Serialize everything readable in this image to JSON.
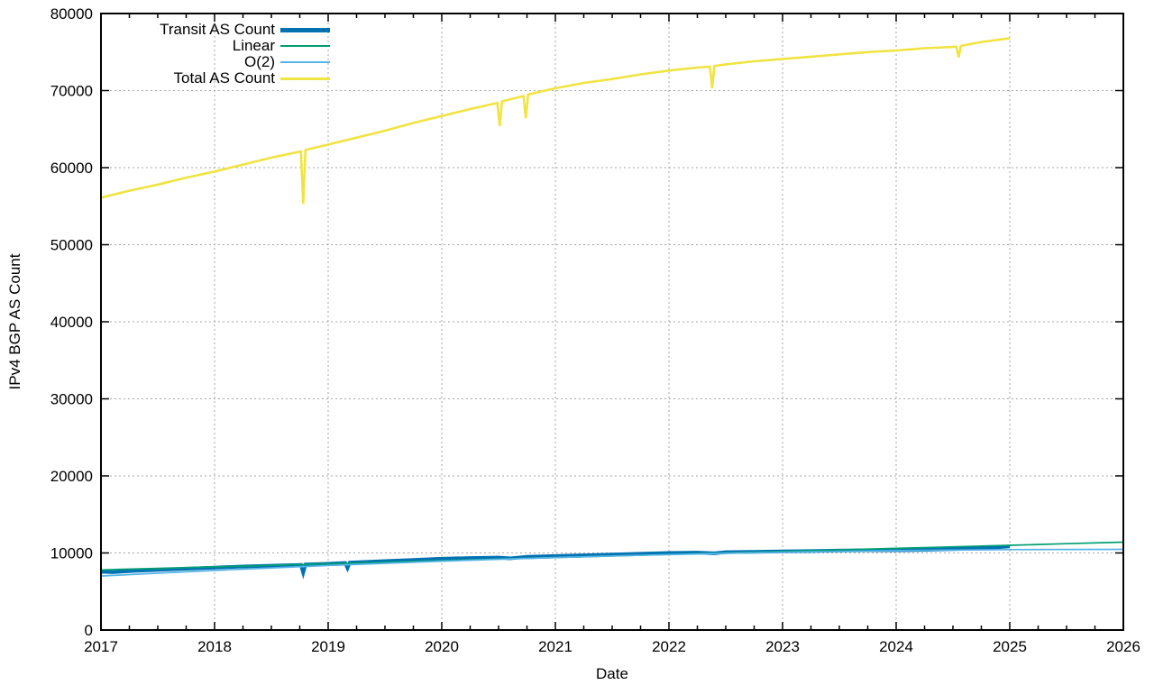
{
  "figure": {
    "background_color": "#ffffff",
    "axis_color": "#000000",
    "grid_color": "#a6a6a6"
  },
  "chart_data": {
    "type": "line",
    "title": "",
    "xlabel": "Date",
    "ylabel": "IPv4 BGP AS Count",
    "xlim": [
      2017,
      2026
    ],
    "ylim": [
      0,
      80000
    ],
    "x_major_ticks": [
      2017,
      2018,
      2019,
      2020,
      2021,
      2022,
      2023,
      2024,
      2025,
      2026
    ],
    "x_tick_labels": [
      "2017",
      "2018",
      "2019",
      "2020",
      "2021",
      "2022",
      "2023",
      "2024",
      "2025",
      "2026"
    ],
    "x_minor_step": 0.25,
    "y_major_ticks": [
      0,
      10000,
      20000,
      30000,
      40000,
      50000,
      60000,
      70000,
      80000
    ],
    "y_tick_labels": [
      "0",
      "10000",
      "20000",
      "30000",
      "40000",
      "50000",
      "60000",
      "70000",
      "80000"
    ],
    "grid": "dotted-on-major-ticks",
    "legend_position": "top-left-inside",
    "series": [
      {
        "name": "Transit AS Count",
        "color": "#0072B2",
        "width": 4,
        "legend_stroke": 5,
        "points": [
          [
            2017.0,
            7550
          ],
          [
            2017.1,
            7500
          ],
          [
            2017.25,
            7650
          ],
          [
            2017.5,
            7800
          ],
          [
            2017.75,
            7950
          ],
          [
            2018.0,
            8100
          ],
          [
            2018.25,
            8250
          ],
          [
            2018.5,
            8350
          ],
          [
            2018.76,
            8450
          ],
          [
            2018.78,
            7450
          ],
          [
            2018.8,
            8500
          ],
          [
            2019.0,
            8600
          ],
          [
            2019.15,
            8700
          ],
          [
            2019.17,
            8050
          ],
          [
            2019.19,
            8750
          ],
          [
            2019.5,
            8950
          ],
          [
            2019.75,
            9100
          ],
          [
            2020.0,
            9250
          ],
          [
            2020.25,
            9350
          ],
          [
            2020.5,
            9400
          ],
          [
            2020.6,
            9300
          ],
          [
            2020.75,
            9500
          ],
          [
            2021.0,
            9600
          ],
          [
            2021.25,
            9700
          ],
          [
            2021.5,
            9800
          ],
          [
            2021.75,
            9900
          ],
          [
            2022.0,
            10000
          ],
          [
            2022.25,
            10050
          ],
          [
            2022.4,
            9950
          ],
          [
            2022.5,
            10100
          ],
          [
            2022.75,
            10150
          ],
          [
            2023.0,
            10200
          ],
          [
            2023.25,
            10250
          ],
          [
            2023.5,
            10300
          ],
          [
            2023.75,
            10350
          ],
          [
            2024.0,
            10350
          ],
          [
            2024.25,
            10400
          ],
          [
            2024.5,
            10500
          ],
          [
            2024.75,
            10600
          ],
          [
            2024.9,
            10750
          ],
          [
            2025.0,
            10850
          ]
        ]
      },
      {
        "name": "Linear",
        "color": "#009E73",
        "width": 1.7,
        "legend_stroke": 2,
        "points": [
          [
            2017,
            7800
          ],
          [
            2017.5,
            8000
          ],
          [
            2018,
            8200
          ],
          [
            2018.5,
            8400
          ],
          [
            2019,
            8600
          ],
          [
            2019.5,
            8800
          ],
          [
            2020,
            9000
          ],
          [
            2020.5,
            9200
          ],
          [
            2021,
            9400
          ],
          [
            2021.5,
            9600
          ],
          [
            2022,
            9800
          ],
          [
            2022.5,
            10000
          ],
          [
            2023,
            10200
          ],
          [
            2023.5,
            10400
          ],
          [
            2024,
            10600
          ],
          [
            2024.5,
            10800
          ],
          [
            2025,
            11000
          ],
          [
            2025.5,
            11200
          ],
          [
            2026,
            11400
          ]
        ]
      },
      {
        "name": "O(2)",
        "color": "#56B4E9",
        "width": 1.7,
        "legend_stroke": 2,
        "points": [
          [
            2017,
            7000
          ],
          [
            2017.5,
            7380
          ],
          [
            2018,
            7730
          ],
          [
            2018.5,
            8060
          ],
          [
            2019,
            8370
          ],
          [
            2019.5,
            8660
          ],
          [
            2020,
            8930
          ],
          [
            2020.5,
            9180
          ],
          [
            2021,
            9400
          ],
          [
            2021.5,
            9610
          ],
          [
            2022,
            9790
          ],
          [
            2022.5,
            9950
          ],
          [
            2023,
            10090
          ],
          [
            2023.5,
            10200
          ],
          [
            2024,
            10300
          ],
          [
            2024.5,
            10370
          ],
          [
            2025,
            10430
          ],
          [
            2025.5,
            10460
          ],
          [
            2026,
            10470
          ]
        ]
      },
      {
        "name": "Total AS Count",
        "color": "#F0E442",
        "width": 2.6,
        "legend_stroke": 3,
        "points": [
          [
            2017.0,
            56100
          ],
          [
            2017.25,
            57000
          ],
          [
            2017.5,
            57800
          ],
          [
            2017.75,
            58700
          ],
          [
            2018.0,
            59500
          ],
          [
            2018.25,
            60400
          ],
          [
            2018.5,
            61300
          ],
          [
            2018.76,
            62100
          ],
          [
            2018.78,
            55300
          ],
          [
            2018.8,
            62300
          ],
          [
            2019.0,
            63000
          ],
          [
            2019.25,
            63900
          ],
          [
            2019.5,
            64800
          ],
          [
            2019.75,
            65800
          ],
          [
            2020.0,
            66700
          ],
          [
            2020.25,
            67600
          ],
          [
            2020.49,
            68400
          ],
          [
            2020.51,
            65400
          ],
          [
            2020.53,
            68600
          ],
          [
            2020.72,
            69300
          ],
          [
            2020.74,
            66400
          ],
          [
            2020.76,
            69500
          ],
          [
            2021.0,
            70300
          ],
          [
            2021.25,
            71000
          ],
          [
            2021.5,
            71500
          ],
          [
            2021.75,
            72100
          ],
          [
            2022.0,
            72600
          ],
          [
            2022.25,
            73000
          ],
          [
            2022.36,
            73100
          ],
          [
            2022.38,
            70300
          ],
          [
            2022.4,
            73200
          ],
          [
            2022.5,
            73400
          ],
          [
            2022.75,
            73800
          ],
          [
            2023.0,
            74100
          ],
          [
            2023.25,
            74400
          ],
          [
            2023.5,
            74700
          ],
          [
            2023.75,
            75000
          ],
          [
            2024.0,
            75200
          ],
          [
            2024.25,
            75500
          ],
          [
            2024.53,
            75700
          ],
          [
            2024.55,
            74300
          ],
          [
            2024.57,
            75800
          ],
          [
            2024.75,
            76300
          ],
          [
            2025.0,
            76800
          ]
        ]
      }
    ]
  }
}
